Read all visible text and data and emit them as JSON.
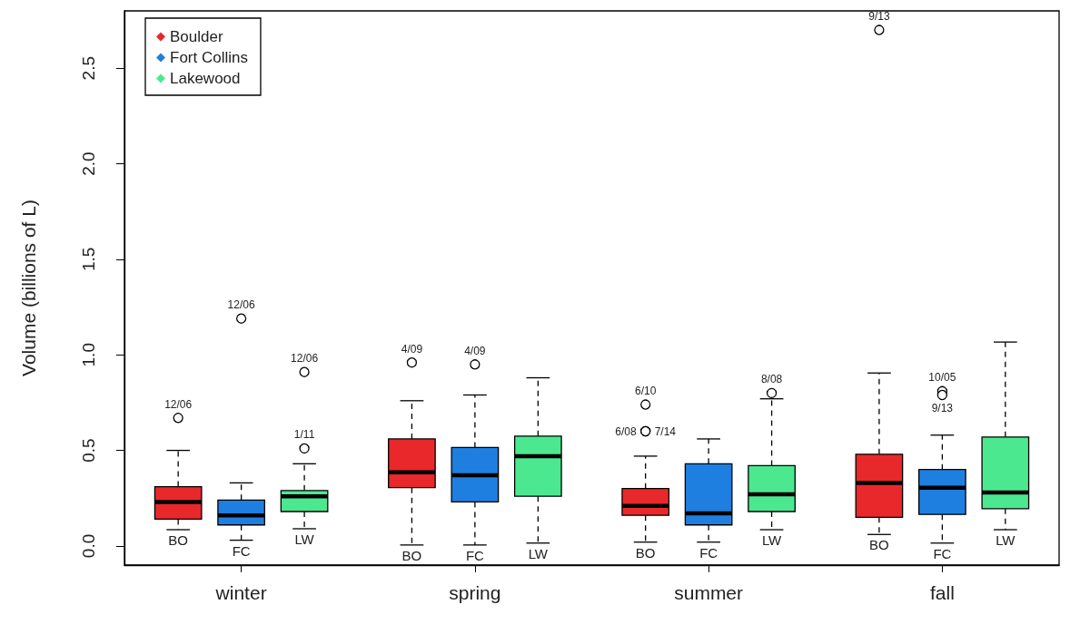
{
  "chart_data": {
    "type": "box",
    "ylabel": "Volume (billions of L)",
    "categories": [
      "winter",
      "spring",
      "summer",
      "fall"
    ],
    "ylim": [
      -0.1,
      2.8
    ],
    "yticks": [
      {
        "value": 0,
        "label": "0.0"
      },
      {
        "value": 0.5,
        "label": "0.5"
      },
      {
        "value": 1,
        "label": "1.0"
      },
      {
        "value": 1.5,
        "label": "1.5"
      },
      {
        "value": 2,
        "label": "2.0"
      },
      {
        "value": 2.5,
        "label": "2.5"
      }
    ],
    "grid": false,
    "legend": "top left",
    "marker": "diamond",
    "series": [
      {
        "name": "Boulder",
        "color": "#e8282b",
        "boxes": [
          {
            "low": 0.085,
            "q1": 0.14,
            "median": 0.23,
            "q3": 0.31,
            "high": 0.5,
            "outliers": [
              0.67
            ]
          },
          {
            "low": 0.005,
            "q1": 0.305,
            "median": 0.385,
            "q3": 0.56,
            "high": 0.76,
            "outliers": [
              0.96
            ]
          },
          {
            "low": 0.02,
            "q1": 0.16,
            "median": 0.21,
            "q3": 0.3,
            "high": 0.47,
            "outliers": [
              0.74,
              0.6,
              0.6
            ]
          },
          {
            "low": 0.06,
            "q1": 0.15,
            "median": 0.33,
            "q3": 0.48,
            "high": 0.905,
            "outliers": [
              2.7
            ]
          }
        ]
      },
      {
        "name": "Fort Collins",
        "color": "#1e7fe0",
        "boxes": [
          {
            "low": 0.03,
            "q1": 0.11,
            "median": 0.16,
            "q3": 0.24,
            "high": 0.33,
            "outliers": [
              1.19
            ]
          },
          {
            "low": 0.005,
            "q1": 0.23,
            "median": 0.37,
            "q3": 0.515,
            "high": 0.79,
            "outliers": [
              0.95
            ]
          },
          {
            "low": 0.02,
            "q1": 0.11,
            "median": 0.17,
            "q3": 0.43,
            "high": 0.56
          },
          {
            "low": 0.015,
            "q1": 0.165,
            "median": 0.305,
            "q3": 0.4,
            "high": 0.58,
            "outliers": [
              0.81,
              0.79
            ]
          }
        ]
      },
      {
        "name": "Lakewood",
        "color": "#4ce890",
        "boxes": [
          {
            "low": 0.09,
            "q1": 0.18,
            "median": 0.26,
            "q3": 0.29,
            "high": 0.43,
            "outliers": [
              0.91,
              0.51
            ]
          },
          {
            "low": 0.015,
            "q1": 0.26,
            "median": 0.47,
            "q3": 0.575,
            "high": 0.88
          },
          {
            "low": 0.085,
            "q1": 0.18,
            "median": 0.27,
            "q3": 0.42,
            "high": 0.77,
            "outliers": [
              0.8
            ]
          },
          {
            "low": 0.085,
            "q1": 0.195,
            "median": 0.28,
            "q3": 0.57,
            "high": 1.067
          }
        ]
      }
    ],
    "annotations": [
      "BO",
      "FC",
      "LW",
      "BO",
      "FC",
      "LW",
      "BO",
      "FC",
      "LW",
      "BO",
      "FC",
      "LW",
      "12/06",
      "12/06",
      "12/06",
      "1/11",
      "4/09",
      "4/09",
      "6/10",
      "6/08",
      "7/14",
      "8/08",
      "9/13",
      "10/05",
      "9/13"
    ]
  }
}
